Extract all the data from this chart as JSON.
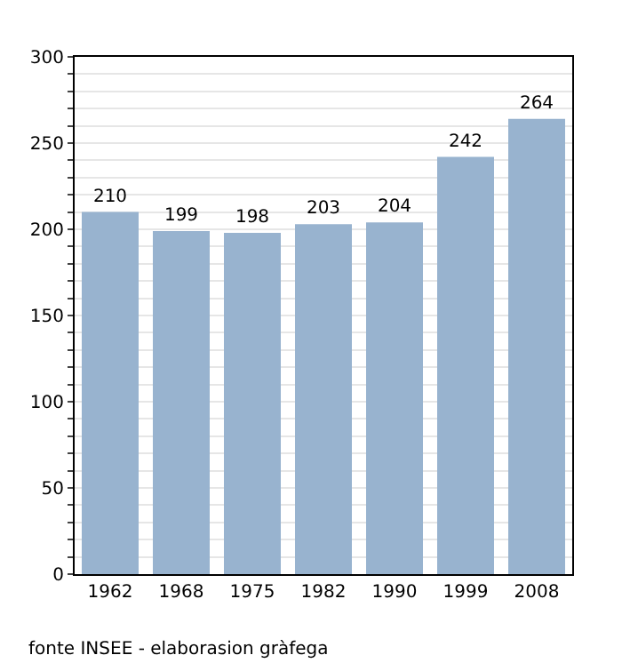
{
  "chart_data": {
    "type": "bar",
    "categories": [
      "1962",
      "1968",
      "1975",
      "1982",
      "1990",
      "1999",
      "2008"
    ],
    "values": [
      210,
      199,
      198,
      203,
      204,
      242,
      264
    ],
    "color": "#98b3cf",
    "ylim": [
      0,
      300
    ],
    "yticks": [
      0,
      {
        "value": 10,
        "label": null
      },
      {
        "value": 20,
        "label": null
      },
      {
        "value": 30,
        "label": null
      },
      {
        "value": 40,
        "label": null
      },
      50,
      {
        "value": 60,
        "label": null
      },
      {
        "value": 70,
        "label": null
      },
      {
        "value": 80,
        "label": null
      },
      {
        "value": 90,
        "label": null
      },
      100,
      {
        "value": 110,
        "label": null
      },
      {
        "value": 120,
        "label": null
      },
      {
        "value": 130,
        "label": null
      },
      {
        "value": 140,
        "label": null
      },
      150,
      {
        "value": 160,
        "label": null
      },
      {
        "value": 170,
        "label": null
      },
      {
        "value": 180,
        "label": null
      },
      {
        "value": 190,
        "label": null
      },
      200,
      {
        "value": 210,
        "label": null
      },
      {
        "value": 220,
        "label": null
      },
      {
        "value": 230,
        "label": null
      },
      {
        "value": 240,
        "label": null
      },
      250,
      {
        "value": 260,
        "label": null
      },
      {
        "value": 270,
        "label": null
      },
      {
        "value": 280,
        "label": null
      },
      {
        "value": 290,
        "label": null
      },
      300
    ],
    "grid": true,
    "data_labels": true,
    "annotations": [
      "fonte INSEE - elaborasion gràfega"
    ]
  }
}
